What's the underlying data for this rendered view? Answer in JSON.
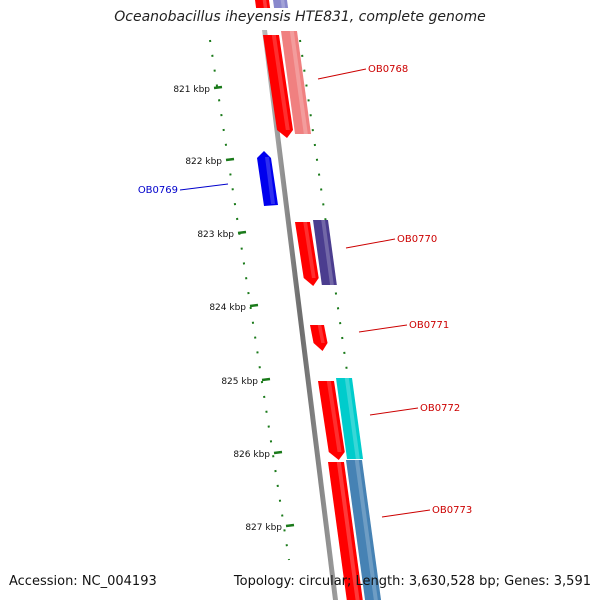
{
  "title": "Oceanobacillus iheyensis HTE831, complete genome",
  "footer": {
    "accession": "Accession: NC_004193",
    "topology": "Topology: circular; Length: 3,630,528 bp; Genes: 3,591"
  },
  "scale": {
    "ticks": [
      {
        "kbp": 821,
        "label": "821 kbp"
      },
      {
        "kbp": 822,
        "label": "822 kbp"
      },
      {
        "kbp": 823,
        "label": "823 kbp"
      },
      {
        "kbp": 824,
        "label": "824 kbp"
      },
      {
        "kbp": 825,
        "label": "825 kbp"
      },
      {
        "kbp": 826,
        "label": "826 kbp"
      },
      {
        "kbp": 827,
        "label": "827 kbp"
      }
    ]
  },
  "colors": {
    "backbone": "#888888",
    "tick": "#1a7a1a",
    "forward_label": "#cc0000",
    "reverse_label": "#0000cc"
  },
  "genes": [
    {
      "name": "OB0768",
      "strand": "+",
      "color": "#ff0000",
      "track_color": "#f08080"
    },
    {
      "name": "OB0769",
      "strand": "-",
      "color": "#0000ee"
    },
    {
      "name": "OB0770",
      "strand": "+",
      "color": "#ff0000",
      "track_color": "#4b3d8f"
    },
    {
      "name": "OB0771",
      "strand": "+",
      "color": "#ff0000"
    },
    {
      "name": "OB0772",
      "strand": "+",
      "color": "#ff0000",
      "track_color": "#00cccc"
    },
    {
      "name": "OB0773",
      "strand": "+",
      "color": "#ff0000",
      "track_color": "#4682b4"
    }
  ]
}
